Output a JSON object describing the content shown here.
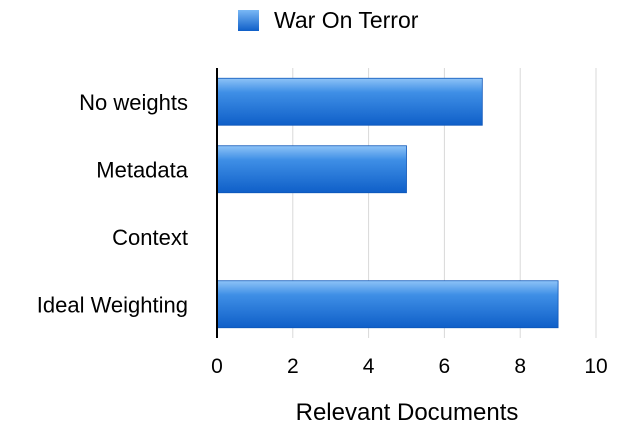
{
  "chart_data": {
    "type": "bar",
    "orientation": "horizontal",
    "categories": [
      "No weights",
      "Metadata",
      "Context",
      "Ideal Weighting"
    ],
    "series": [
      {
        "name": "War On Terror",
        "values": [
          7,
          5,
          0,
          9
        ],
        "color": "#1e73d8"
      }
    ],
    "xlabel": "Relevant Documents",
    "ylabel": "",
    "xlim": [
      0,
      10
    ],
    "xticks": [
      0,
      2,
      4,
      6,
      8,
      10
    ],
    "grid": true,
    "legend_position": "top-center"
  }
}
